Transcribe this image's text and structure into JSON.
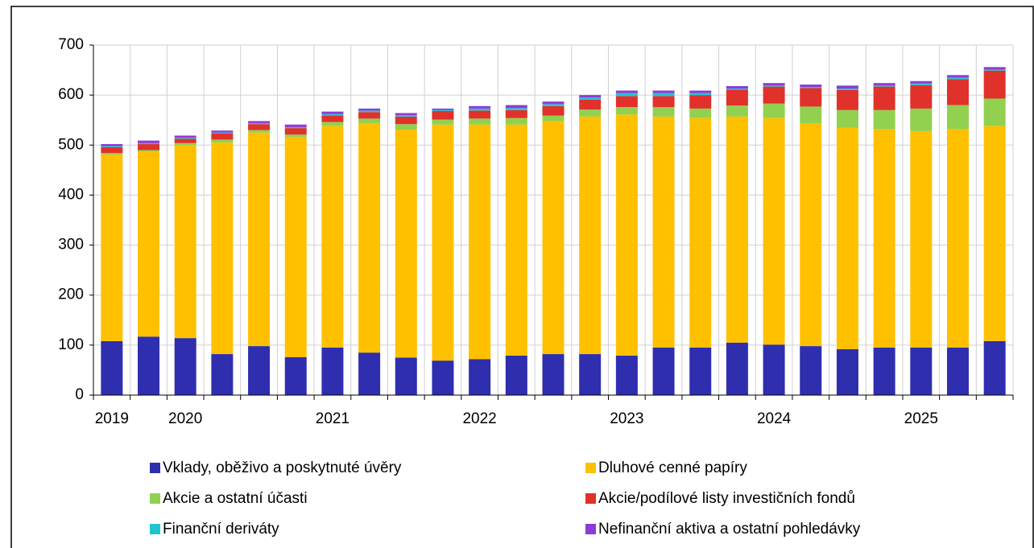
{
  "chart_data": {
    "type": "stacked_bar",
    "categories": [
      "2019",
      null,
      "2020",
      null,
      null,
      null,
      "2021",
      null,
      null,
      null,
      "2022",
      null,
      null,
      null,
      "2023",
      null,
      null,
      null,
      "2024",
      null,
      null,
      null,
      "2025",
      null,
      null
    ],
    "series": [
      {
        "name": "Vklady, oběživo a poskytnuté úvěry",
        "color": "#2e2eae",
        "values": [
          108,
          117,
          114,
          82,
          98,
          76,
          95,
          85,
          75,
          69,
          72,
          79,
          82,
          82,
          79,
          95,
          95,
          105,
          101,
          98,
          92,
          95,
          95,
          95,
          108
        ]
      },
      {
        "name": "Dluhové cenné papíry",
        "color": "#ffc000",
        "values": [
          373,
          370,
          386,
          423,
          427,
          440,
          443,
          459,
          456,
          472,
          469,
          462,
          466,
          475,
          482,
          462,
          459,
          452,
          453,
          446,
          443,
          437,
          433,
          437,
          430
        ]
      },
      {
        "name": "Akcie a ostatní účasti",
        "color": "#92d050",
        "values": [
          3,
          3,
          4,
          6,
          5,
          5,
          8,
          9,
          11,
          10,
          12,
          13,
          11,
          14,
          15,
          19,
          19,
          22,
          29,
          33,
          35,
          38,
          45,
          48,
          55
        ]
      },
      {
        "name": "Akcie/podílové listy investičních fondů",
        "color": "#e0312b",
        "values": [
          12,
          12,
          9,
          12,
          12,
          13,
          13,
          13,
          15,
          17,
          16,
          16,
          19,
          20,
          22,
          22,
          27,
          32,
          34,
          37,
          40,
          47,
          47,
          52,
          56
        ]
      },
      {
        "name": "Finanční deriváty",
        "color": "#1fc4d0",
        "values": [
          2,
          2,
          2,
          2,
          2,
          2,
          3,
          3,
          3,
          2,
          4,
          4,
          4,
          4,
          6,
          6,
          4,
          2,
          2,
          2,
          3,
          2,
          3,
          3,
          2
        ]
      },
      {
        "name": "Nefinanční aktiva a ostatní pohledávky",
        "color": "#8e3ad8",
        "values": [
          4,
          5,
          4,
          4,
          4,
          5,
          5,
          4,
          4,
          3,
          5,
          6,
          5,
          5,
          5,
          5,
          5,
          5,
          5,
          5,
          6,
          5,
          5,
          5,
          5
        ]
      }
    ],
    "ylim": [
      0,
      700
    ],
    "yticks": [
      0,
      100,
      200,
      300,
      400,
      500,
      600,
      700
    ],
    "grid": true
  }
}
